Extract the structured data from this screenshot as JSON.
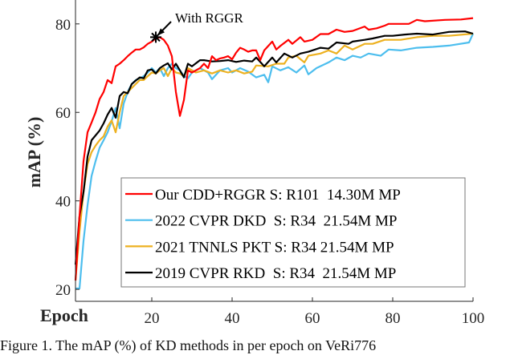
{
  "chart_data": {
    "type": "line",
    "xlabel": "Epoch",
    "ylabel": "mAP (%)",
    "xlim": [
      1,
      100
    ],
    "ylim": [
      17.3,
      85.4
    ],
    "xticks": [
      20,
      40,
      60,
      80,
      100
    ],
    "yticks": [
      20,
      40,
      60,
      80
    ],
    "grid": false,
    "legend_position": "bottom-right",
    "annotation": {
      "text": "With RGGR",
      "epoch": 21,
      "value": 77,
      "marker": "star"
    },
    "series": [
      {
        "name": "Our CDD+RGGR S: R101  14.30M MP",
        "color": "#ff0000",
        "points": [
          [
            1,
            22
          ],
          [
            2,
            36.5
          ],
          [
            3,
            49
          ],
          [
            4,
            55.5
          ],
          [
            5,
            57.7
          ],
          [
            6,
            60
          ],
          [
            7,
            63
          ],
          [
            8,
            64.6
          ],
          [
            9,
            67.3
          ],
          [
            10,
            66.6
          ],
          [
            11,
            70.4
          ],
          [
            12,
            71
          ],
          [
            13,
            71.8
          ],
          [
            14,
            72.7
          ],
          [
            15,
            73.5
          ],
          [
            16,
            74.2
          ],
          [
            17,
            74.2
          ],
          [
            18,
            74.7
          ],
          [
            19,
            75.5
          ],
          [
            20,
            76
          ],
          [
            21,
            76.7
          ],
          [
            22,
            77
          ],
          [
            23,
            76.4
          ],
          [
            24,
            75.1
          ],
          [
            25,
            72.7
          ],
          [
            26,
            64.6
          ],
          [
            27,
            59.2
          ],
          [
            28,
            62.8
          ],
          [
            29,
            69.5
          ],
          [
            30,
            69
          ],
          [
            31,
            69.5
          ],
          [
            32,
            70
          ],
          [
            33,
            71
          ],
          [
            34,
            70
          ],
          [
            35,
            72.7
          ],
          [
            36,
            71.8
          ],
          [
            37,
            72.2
          ],
          [
            38,
            72.4
          ],
          [
            39,
            72.7
          ],
          [
            40,
            72
          ],
          [
            41,
            73.5
          ],
          [
            42,
            74.6
          ],
          [
            43,
            74.2
          ],
          [
            44,
            73.7
          ],
          [
            45,
            74
          ],
          [
            46,
            74
          ],
          [
            47,
            71.8
          ],
          [
            48,
            74
          ],
          [
            50,
            76
          ],
          [
            51,
            74.2
          ],
          [
            52,
            75
          ],
          [
            54,
            76.4
          ],
          [
            55,
            75.5
          ],
          [
            57,
            77
          ],
          [
            58,
            76
          ],
          [
            60,
            76.4
          ],
          [
            62,
            77.7
          ],
          [
            64,
            77.7
          ],
          [
            66,
            78.7
          ],
          [
            68,
            78.2
          ],
          [
            70,
            78.4
          ],
          [
            73,
            79.4
          ],
          [
            74,
            78.7
          ],
          [
            76,
            79
          ],
          [
            78,
            79.6
          ],
          [
            79,
            80
          ],
          [
            82,
            80
          ],
          [
            84,
            80
          ],
          [
            86,
            80.9
          ],
          [
            88,
            80.6
          ],
          [
            93,
            80.9
          ],
          [
            97,
            81
          ],
          [
            100,
            81.3
          ]
        ]
      },
      {
        "name": "2022 CVPR DKD  S: R34  21.54M MP",
        "color": "#4dbeee",
        "points": [
          [
            1,
            20.2
          ],
          [
            2,
            20.2
          ],
          [
            3,
            31
          ],
          [
            4,
            39
          ],
          [
            5,
            45.6
          ],
          [
            6,
            49
          ],
          [
            7,
            52
          ],
          [
            8,
            53.7
          ],
          [
            9,
            55.5
          ],
          [
            10,
            58
          ],
          [
            11,
            61
          ],
          [
            12,
            56.4
          ],
          [
            13,
            62
          ],
          [
            14,
            64.6
          ],
          [
            15,
            66.4
          ],
          [
            16,
            67.3
          ],
          [
            17,
            67.7
          ],
          [
            18,
            68.2
          ],
          [
            19,
            69
          ],
          [
            20,
            70
          ],
          [
            21,
            69
          ],
          [
            22,
            70
          ],
          [
            23,
            68.2
          ],
          [
            24,
            70
          ],
          [
            25,
            71
          ],
          [
            26,
            70
          ],
          [
            27,
            69.5
          ],
          [
            28,
            68.2
          ],
          [
            29,
            67.7
          ],
          [
            30,
            69
          ],
          [
            32,
            70
          ],
          [
            34,
            69
          ],
          [
            35,
            67.5
          ],
          [
            37,
            69.5
          ],
          [
            39,
            70
          ],
          [
            40,
            69
          ],
          [
            42,
            70
          ],
          [
            44,
            69.2
          ],
          [
            46,
            67.9
          ],
          [
            48,
            68.5
          ],
          [
            49,
            66.8
          ],
          [
            50,
            70.4
          ],
          [
            52,
            69.5
          ],
          [
            54,
            70.2
          ],
          [
            56,
            69
          ],
          [
            58,
            70.6
          ],
          [
            59,
            68.6
          ],
          [
            61,
            70
          ],
          [
            64,
            71.3
          ],
          [
            66,
            72.4
          ],
          [
            68,
            71.8
          ],
          [
            70,
            72.8
          ],
          [
            72,
            72.4
          ],
          [
            74,
            73.3
          ],
          [
            77,
            72.8
          ],
          [
            79,
            74.2
          ],
          [
            82,
            74
          ],
          [
            86,
            74.6
          ],
          [
            90,
            74.8
          ],
          [
            94,
            75.1
          ],
          [
            99,
            75.8
          ],
          [
            100,
            77.8
          ]
        ]
      },
      {
        "name": "2021 TNNLS PKT S: R34 21.54M MP",
        "color": "#edb120",
        "points": [
          [
            1,
            22
          ],
          [
            2,
            33
          ],
          [
            3,
            42
          ],
          [
            4,
            48.3
          ],
          [
            5,
            51
          ],
          [
            6,
            52.5
          ],
          [
            7,
            53.7
          ],
          [
            8,
            54.6
          ],
          [
            9,
            56.8
          ],
          [
            10,
            58.2
          ],
          [
            11,
            55.5
          ],
          [
            12,
            60
          ],
          [
            13,
            63.7
          ],
          [
            14,
            64.6
          ],
          [
            15,
            65.5
          ],
          [
            16,
            66.4
          ],
          [
            17,
            67.3
          ],
          [
            18,
            67.3
          ],
          [
            19,
            68.2
          ],
          [
            20,
            69
          ],
          [
            21,
            68.8
          ],
          [
            22,
            69.5
          ],
          [
            23,
            70
          ],
          [
            24,
            68.2
          ],
          [
            25,
            70
          ],
          [
            26,
            69
          ],
          [
            27,
            68.8
          ],
          [
            28,
            68.2
          ],
          [
            29,
            70
          ],
          [
            31,
            69
          ],
          [
            33,
            69.5
          ],
          [
            35,
            68.8
          ],
          [
            37,
            69.5
          ],
          [
            39,
            69
          ],
          [
            41,
            69.5
          ],
          [
            43,
            68.8
          ],
          [
            45,
            69.2
          ],
          [
            46,
            70.6
          ],
          [
            49,
            70.4
          ],
          [
            51,
            71
          ],
          [
            53,
            71
          ],
          [
            54,
            72.4
          ],
          [
            56,
            72.8
          ],
          [
            58,
            71.3
          ],
          [
            59,
            72.8
          ],
          [
            62,
            73.3
          ],
          [
            64,
            74
          ],
          [
            66,
            73.3
          ],
          [
            68,
            75.1
          ],
          [
            70,
            74.2
          ],
          [
            73,
            75.5
          ],
          [
            75,
            75.5
          ],
          [
            78,
            76.4
          ],
          [
            82,
            76.4
          ],
          [
            86,
            77
          ],
          [
            90,
            77.3
          ],
          [
            94,
            77.3
          ],
          [
            100,
            77.8
          ]
        ]
      },
      {
        "name": "2019 CVPR RKD  S: R34  21.54M MP",
        "color": "#000000",
        "points": [
          [
            1,
            25.6
          ],
          [
            2,
            36.5
          ],
          [
            3,
            42
          ],
          [
            4,
            50
          ],
          [
            5,
            53.7
          ],
          [
            7,
            55.9
          ],
          [
            8,
            57.5
          ],
          [
            9,
            59.5
          ],
          [
            10,
            61
          ],
          [
            11,
            58.8
          ],
          [
            12,
            63.7
          ],
          [
            13,
            64.6
          ],
          [
            14,
            64.3
          ],
          [
            15,
            66.4
          ],
          [
            16,
            67.2
          ],
          [
            17,
            67.9
          ],
          [
            18,
            67.7
          ],
          [
            19,
            69.5
          ],
          [
            20,
            69.7
          ],
          [
            21,
            68.8
          ],
          [
            22,
            70
          ],
          [
            23,
            70.6
          ],
          [
            24,
            71.1
          ],
          [
            25,
            69.7
          ],
          [
            26,
            71
          ],
          [
            27,
            69.5
          ],
          [
            28,
            67.9
          ],
          [
            29,
            71
          ],
          [
            30,
            70.4
          ],
          [
            32,
            71.8
          ],
          [
            33,
            71.8
          ],
          [
            35,
            71.5
          ],
          [
            37,
            71.6
          ],
          [
            39,
            71.8
          ],
          [
            41,
            71.4
          ],
          [
            43,
            71.7
          ],
          [
            45,
            71.5
          ],
          [
            46,
            72.4
          ],
          [
            48,
            70.4
          ],
          [
            50,
            72.4
          ],
          [
            51,
            71.3
          ],
          [
            53,
            73.3
          ],
          [
            55,
            72.4
          ],
          [
            57,
            73.3
          ],
          [
            59,
            73.7
          ],
          [
            62,
            74.6
          ],
          [
            64,
            74.4
          ],
          [
            66,
            75.8
          ],
          [
            69,
            75.5
          ],
          [
            70,
            76
          ],
          [
            73,
            76.4
          ],
          [
            75,
            76.7
          ],
          [
            78,
            77.3
          ],
          [
            80,
            77.3
          ],
          [
            83,
            77.6
          ],
          [
            86,
            77.8
          ],
          [
            90,
            77.6
          ],
          [
            94,
            78.2
          ],
          [
            98,
            78.3
          ],
          [
            100,
            77.8
          ]
        ]
      }
    ]
  },
  "caption": "Figure 1. The mAP (%) of KD methods in per epoch on VeRi776"
}
